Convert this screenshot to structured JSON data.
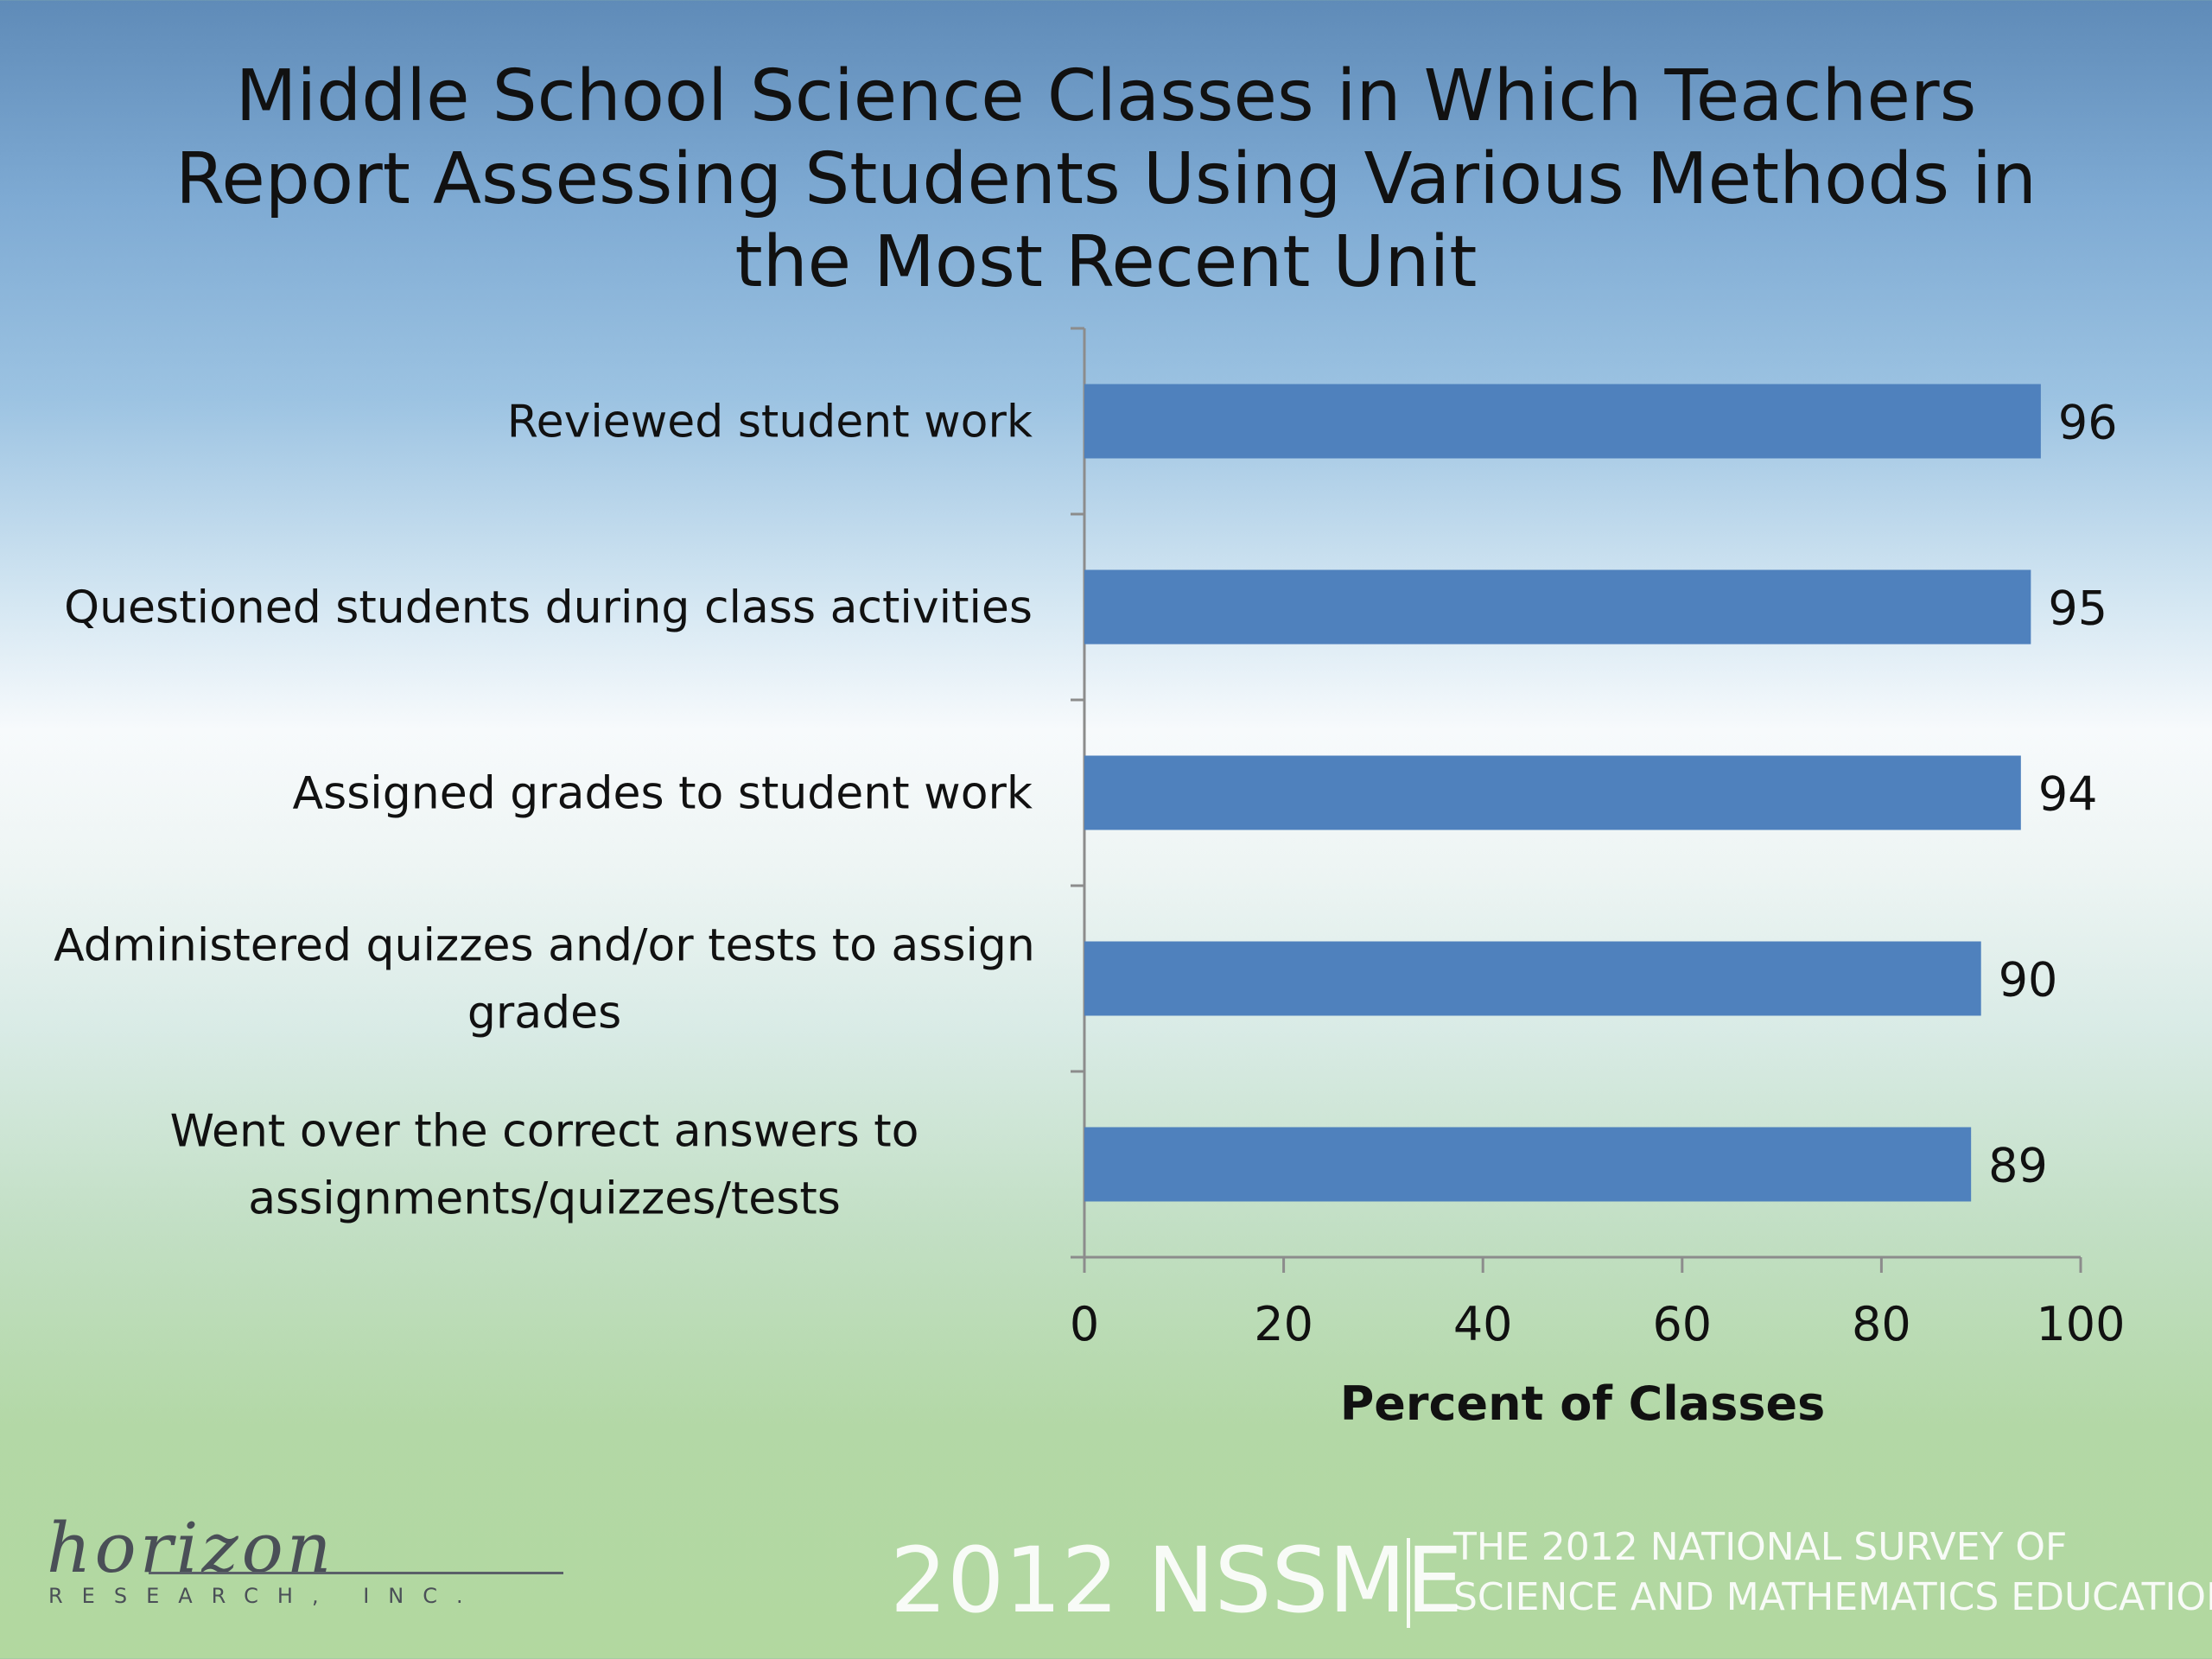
{
  "chart_data": {
    "type": "bar",
    "orientation": "horizontal",
    "title": "Middle School Science Classes in Which Teachers Report Assessing Students Using Various Methods in the Most Recent Unit",
    "title_lines": [
      "Middle School Science Classes in Which Teachers",
      "Report Assessing Students Using Various Methods in",
      "the Most Recent Unit"
    ],
    "categories": [
      [
        "Reviewed student work"
      ],
      [
        "Questioned students during class activities"
      ],
      [
        "Assigned grades to student work"
      ],
      [
        "Administered quizzes and/or tests to assign",
        "grades"
      ],
      [
        "Went over the correct answers to",
        "assignments/quizzes/tests"
      ]
    ],
    "values": [
      96,
      95,
      94,
      90,
      89
    ],
    "xlabel": "Percent of Classes",
    "ylabel": "",
    "xlim": [
      0,
      100
    ],
    "xticks": [
      "0",
      "20",
      "40",
      "60",
      "80",
      "100"
    ],
    "bar_color": "#4f81bd",
    "grid": false,
    "legend": "none"
  },
  "footer": {
    "logo_script": "horizon",
    "logo_sub": "RESEARCH, INC.",
    "brand": "2012 NSSME",
    "subtitle_lines": [
      "THE 2012 NATIONAL SURVEY OF",
      "SCIENCE AND MATHEMATICS EDUCATION"
    ]
  }
}
